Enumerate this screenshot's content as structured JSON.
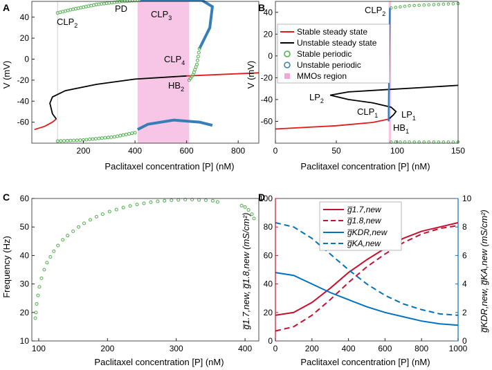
{
  "colors": {
    "stable_ss": "#e41a1c",
    "unstable_ss": "#000000",
    "stable_po": "#4daf4a",
    "unstable_po": "#377eb8",
    "mmo": "#f7c6e6",
    "red_axis": "#c8102e",
    "blue_axis": "#0072bd"
  },
  "chart_data": [
    {
      "id": "A",
      "type": "line",
      "panel_label": "A",
      "xlabel": "Paclitaxel concentration [P] (nM)",
      "ylabel": "V (mV)",
      "xlim": [
        0,
        880
      ],
      "ylim": [
        -80,
        55
      ],
      "xticks": [
        "200",
        "400",
        "600",
        "800"
      ],
      "yticks": [
        "40",
        "20",
        "0",
        "-20",
        "-40",
        "-60"
      ],
      "mmo_region": [
        410,
        610
      ],
      "vline": 100,
      "annotations": [
        {
          "label": "CLP",
          "sub": "2"
        },
        {
          "label": "PD",
          "sub": ""
        },
        {
          "label": "CLP",
          "sub": "3"
        },
        {
          "label": "CLP",
          "sub": "4"
        },
        {
          "label": "HB",
          "sub": "2"
        }
      ],
      "series": {
        "stable_ss": [
          [
            10,
            -67
          ],
          [
            50,
            -64
          ],
          [
            80,
            -60
          ],
          [
            95,
            -57
          ]
        ],
        "unstable_ss": [
          [
            95,
            -57
          ],
          [
            80,
            -52
          ],
          [
            70,
            -42
          ],
          [
            80,
            -36
          ],
          [
            130,
            -30
          ],
          [
            250,
            -24
          ],
          [
            400,
            -19
          ],
          [
            600,
            -16
          ]
        ],
        "stable_ss_right": [
          [
            600,
            -16
          ],
          [
            880,
            -13
          ]
        ],
        "stable_po_max": [
          [
            100,
            44
          ],
          [
            150,
            47
          ],
          [
            250,
            52
          ],
          [
            350,
            55
          ],
          [
            420,
            56
          ]
        ],
        "unstable_po_max": [
          [
            420,
            56
          ],
          [
            550,
            56
          ],
          [
            660,
            56
          ],
          [
            700,
            50
          ],
          [
            690,
            30
          ],
          [
            650,
            10
          ]
        ],
        "stable_po_max_right": [
          [
            650,
            10
          ],
          [
            640,
            -5
          ],
          [
            625,
            -15
          ],
          [
            610,
            -20
          ]
        ],
        "stable_po_min": [
          [
            100,
            -78
          ],
          [
            200,
            -77
          ],
          [
            320,
            -74
          ],
          [
            400,
            -70
          ]
        ],
        "unstable_po_min": [
          [
            410,
            -67
          ],
          [
            450,
            -62
          ],
          [
            550,
            -58
          ],
          [
            650,
            -60
          ],
          [
            700,
            -63
          ]
        ]
      }
    },
    {
      "id": "B",
      "type": "line",
      "panel_label": "B",
      "xlabel": "Paclitaxel concentration [P] (nM)",
      "ylabel": "V (mV)",
      "xlim": [
        0,
        150
      ],
      "ylim": [
        -80,
        50
      ],
      "xticks": [
        "0",
        "50",
        "100",
        "150"
      ],
      "yticks": [
        "40",
        "20",
        "0",
        "-20",
        "-40",
        "-60"
      ],
      "mmo_region": [
        93,
        95
      ],
      "annotations": [
        {
          "label": "CLP",
          "sub": "2"
        },
        {
          "label": "LP",
          "sub": "2"
        },
        {
          "label": "CLP",
          "sub": "1"
        },
        {
          "label": "LP",
          "sub": "1"
        },
        {
          "label": "HB",
          "sub": "1"
        }
      ],
      "legend": [
        {
          "label": "Stable steady state",
          "kind": "line",
          "color": "#e41a1c"
        },
        {
          "label": "Unstable steady state",
          "kind": "line",
          "color": "#000000"
        },
        {
          "label": "Stable periodic",
          "kind": "circle",
          "color": "#4daf4a"
        },
        {
          "label": "Unstable periodic",
          "kind": "circle",
          "color": "#377eb8"
        },
        {
          "label": "MMOs region",
          "kind": "square",
          "color": "#f7c6e6"
        }
      ],
      "series": {
        "stable_ss": [
          [
            0,
            -67
          ],
          [
            50,
            -64
          ],
          [
            80,
            -61
          ],
          [
            93,
            -58
          ]
        ],
        "unstable_ss": [
          [
            93,
            -58
          ],
          [
            97,
            -54
          ],
          [
            99,
            -51
          ],
          [
            95,
            -47
          ],
          [
            80,
            -43
          ],
          [
            60,
            -40
          ],
          [
            45,
            -36
          ],
          [
            60,
            -33
          ],
          [
            90,
            -31
          ],
          [
            120,
            -29
          ],
          [
            150,
            -27
          ]
        ],
        "stable_po_max": [
          [
            95,
            44
          ],
          [
            110,
            46
          ],
          [
            130,
            47
          ],
          [
            150,
            48
          ]
        ],
        "stable_po_min": [
          [
            95,
            -79
          ],
          [
            110,
            -79
          ],
          [
            130,
            -79
          ],
          [
            150,
            -79
          ]
        ],
        "unstable_po": [
          [
            94,
            44
          ],
          [
            94,
            42
          ],
          [
            93,
            -50
          ],
          [
            93,
            -55
          ],
          [
            93,
            -60
          ]
        ]
      }
    },
    {
      "id": "C",
      "type": "scatter",
      "panel_label": "C",
      "xlabel": "Paclitaxel concentration [P] (nM)",
      "ylabel": "Frequency (Hz)",
      "xlim": [
        90,
        420
      ],
      "ylim": [
        10,
        60
      ],
      "xticks": [
        "100",
        "200",
        "300",
        "400"
      ],
      "yticks": [
        "60",
        "50",
        "40",
        "30",
        "20",
        "10"
      ],
      "points": [
        [
          95,
          18
        ],
        [
          96,
          20
        ],
        [
          97,
          23
        ],
        [
          99,
          26
        ],
        [
          101,
          29
        ],
        [
          104,
          32
        ],
        [
          108,
          35
        ],
        [
          112,
          37.5
        ],
        [
          117,
          39.5
        ],
        [
          122,
          41.5
        ],
        [
          128,
          43.5
        ],
        [
          135,
          45.5
        ],
        [
          142,
          47
        ],
        [
          150,
          48.5
        ],
        [
          158,
          50
        ],
        [
          166,
          51.3
        ],
        [
          175,
          52.5
        ],
        [
          184,
          53.6
        ],
        [
          193,
          54.5
        ],
        [
          203,
          55.4
        ],
        [
          213,
          56.1
        ],
        [
          223,
          56.8
        ],
        [
          233,
          57.4
        ],
        [
          243,
          57.9
        ],
        [
          253,
          58.3
        ],
        [
          263,
          58.7
        ],
        [
          273,
          59
        ],
        [
          283,
          59.2
        ],
        [
          293,
          59.4
        ],
        [
          303,
          59.5
        ],
        [
          313,
          59.6
        ],
        [
          323,
          59.6
        ],
        [
          333,
          59.5
        ],
        [
          343,
          59.4
        ],
        [
          353,
          59.2
        ],
        [
          360,
          58.8
        ],
        [
          395,
          57.5
        ],
        [
          400,
          57
        ],
        [
          405,
          56
        ],
        [
          410,
          54.5
        ],
        [
          413,
          53
        ]
      ]
    },
    {
      "id": "D",
      "type": "line",
      "panel_label": "D",
      "xlabel": "Paclitaxel concentration [P] (nM)",
      "xlim": [
        0,
        1000
      ],
      "ylim_left": [
        0,
        100
      ],
      "ylim_right": [
        0,
        10
      ],
      "xticks": [
        "0",
        "200",
        "400",
        "600",
        "800",
        "1000"
      ],
      "yticks_left": [
        "100",
        "80",
        "60",
        "40",
        "20",
        "0"
      ],
      "yticks_right": [
        "10",
        "8",
        "6",
        "4",
        "2",
        "0"
      ],
      "ylabel_left": "g̅1.7,new, g̅1.8,new (mS/cm²)",
      "ylabel_right": "g̅KDR,new, g̅KA,new (mS/cm²)",
      "legend": [
        {
          "label": "g̅1.7,new",
          "color": "#c8102e",
          "dash": false
        },
        {
          "label": "g̅1.8,new",
          "color": "#c8102e",
          "dash": true
        },
        {
          "label": "g̅KDR,new",
          "color": "#0072bd",
          "dash": false
        },
        {
          "label": "g̅KA,new",
          "color": "#0072bd",
          "dash": true
        }
      ],
      "series": [
        {
          "name": "g1.7",
          "axis": "left",
          "x": [
            0,
            100,
            200,
            300,
            400,
            500,
            600,
            700,
            800,
            900,
            1000
          ],
          "values": [
            18,
            20,
            27,
            37,
            48,
            57,
            65,
            72,
            77,
            80,
            83
          ]
        },
        {
          "name": "g1.8",
          "axis": "left",
          "x": [
            0,
            100,
            200,
            300,
            400,
            500,
            600,
            700,
            800,
            900,
            1000
          ],
          "values": [
            7,
            10,
            18,
            29,
            41,
            52,
            61,
            69,
            75,
            79,
            81
          ]
        },
        {
          "name": "gKDR",
          "axis": "right",
          "x": [
            0,
            100,
            200,
            300,
            400,
            500,
            600,
            700,
            800,
            900,
            1000
          ],
          "values": [
            4.8,
            4.6,
            4.0,
            3.4,
            2.9,
            2.4,
            2.0,
            1.7,
            1.4,
            1.2,
            1.1
          ]
        },
        {
          "name": "gKA",
          "axis": "right",
          "x": [
            0,
            100,
            200,
            300,
            400,
            500,
            600,
            700,
            800,
            900,
            1000
          ],
          "values": [
            8.3,
            8.0,
            7.2,
            6.1,
            5.0,
            4.0,
            3.2,
            2.6,
            2.2,
            1.9,
            1.8
          ]
        }
      ]
    }
  ]
}
